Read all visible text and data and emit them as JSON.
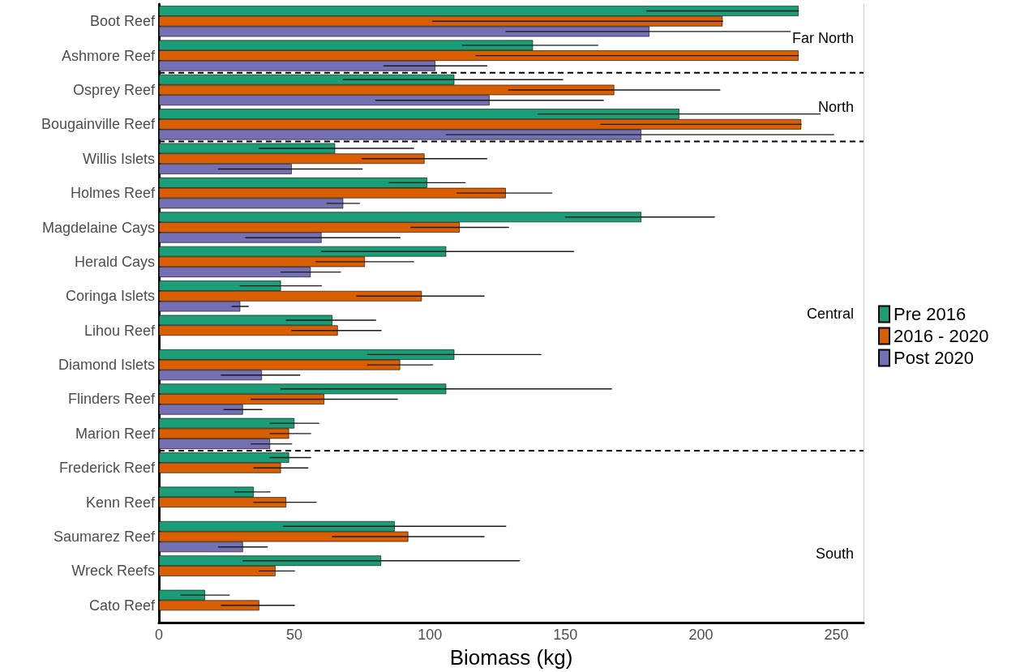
{
  "chart_data": {
    "type": "bar",
    "orientation": "horizontal",
    "xlabel": "Biomass (kg)",
    "categories": [
      "Boot Reef",
      "Ashmore Reef",
      "Osprey Reef",
      "Bougainville Reef",
      "Willis Islets",
      "Holmes Reef",
      "Magdelaine Cays",
      "Herald Cays",
      "Coringa Islets",
      "Lihou Reef",
      "Diamond Islets",
      "Flinders Reef",
      "Marion Reef",
      "Frederick Reef",
      "Kenn Reef",
      "Saumarez Reef",
      "Wreck Reefs",
      "Cato Reef"
    ],
    "series": [
      {
        "name": "Pre 2016",
        "color": "#1b9e77",
        "values": [
          236,
          138,
          109,
          192,
          65,
          99,
          178,
          106,
          45,
          64,
          109,
          106,
          50,
          48,
          35,
          87,
          82,
          17
        ],
        "errors": [
          [
            180,
            236
          ],
          [
            112,
            162
          ],
          [
            68,
            149
          ],
          [
            140,
            244
          ],
          [
            37,
            94
          ],
          [
            85,
            113
          ],
          [
            150,
            205
          ],
          [
            60,
            153
          ],
          [
            30,
            60
          ],
          [
            47,
            80
          ],
          [
            77,
            141
          ],
          [
            45,
            167
          ],
          [
            41,
            59
          ],
          [
            41,
            56
          ],
          [
            28,
            41
          ],
          [
            46,
            128
          ],
          [
            31,
            133
          ],
          [
            8,
            26
          ]
        ]
      },
      {
        "name": "2016 - 2020",
        "color": "#d95f02",
        "values": [
          208,
          236,
          168,
          237,
          98,
          128,
          111,
          76,
          97,
          66,
          89,
          61,
          48,
          45,
          47,
          92,
          43,
          37
        ],
        "errors": [
          [
            101,
            208
          ],
          [
            117,
            236
          ],
          [
            129,
            207
          ],
          [
            163,
            237
          ],
          [
            75,
            121
          ],
          [
            110,
            145
          ],
          [
            93,
            129
          ],
          [
            58,
            94
          ],
          [
            73,
            120
          ],
          [
            49,
            82
          ],
          [
            77,
            101
          ],
          [
            34,
            88
          ],
          [
            41,
            56
          ],
          [
            35,
            55
          ],
          [
            35,
            58
          ],
          [
            64,
            120
          ],
          [
            37,
            50
          ],
          [
            23,
            50
          ]
        ]
      },
      {
        "name": "Post 2020",
        "color": "#7570b3",
        "values": [
          181,
          102,
          122,
          178,
          49,
          68,
          60,
          56,
          30,
          null,
          38,
          31,
          41,
          null,
          null,
          31,
          null,
          null
        ],
        "errors": [
          [
            128,
            233
          ],
          [
            83,
            121
          ],
          [
            80,
            164
          ],
          [
            106,
            249
          ],
          [
            22,
            75
          ],
          [
            62,
            74
          ],
          [
            32,
            89
          ],
          [
            45,
            67
          ],
          [
            27,
            33
          ],
          null,
          [
            23,
            52
          ],
          [
            24,
            38
          ],
          [
            34,
            49
          ],
          null,
          null,
          [
            22,
            40
          ],
          null,
          null
        ]
      }
    ],
    "xlim": [
      0,
      260
    ],
    "xticks": [
      0,
      50,
      100,
      150,
      200,
      250
    ],
    "legend": "right",
    "annotations": [
      "Far North",
      "North",
      "Central",
      "South"
    ]
  }
}
